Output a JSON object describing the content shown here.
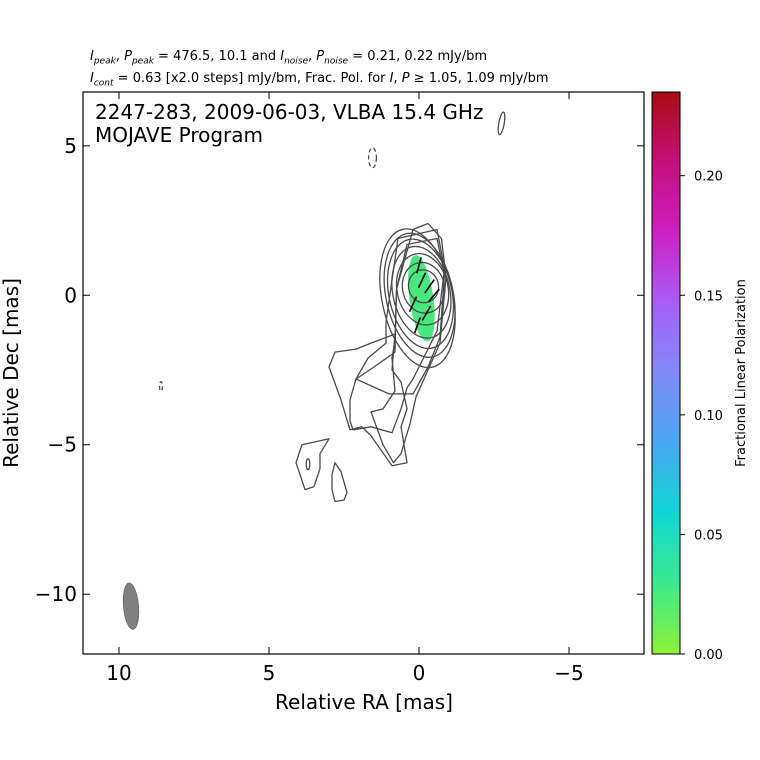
{
  "header": {
    "i_peak": "I",
    "i_peak_sub": "peak",
    "p_peak": "P",
    "p_peak_sub": "peak",
    "peak_values": " = 476.5, 10.1 and ",
    "i_noise": "I",
    "i_noise_sub": "noise",
    "p_noise": "P",
    "p_noise_sub": "noise",
    "noise_values": " = 0.21, 0.22 mJy/bm",
    "i_cont": "I",
    "i_cont_sub": "cont",
    "cont_values": " = 0.63 [x2.0 steps] mJy/bm, Frac. Pol. for ",
    "frac_i": "I",
    "frac_p": "P",
    "frac_ge": " ≥ ",
    "frac_values": " 1.05, 1.09 mJy/bm"
  },
  "chart_data": {
    "type": "contour",
    "title": "2247-283, 2009-06-03, VLBA 15.4 GHz",
    "subtitle": "MOJAVE Program",
    "xlabel": "Relative RA [mas]",
    "ylabel": "Relative Dec [mas]",
    "xlim": [
      11.2,
      -7.5
    ],
    "ylim": [
      -12.0,
      6.8
    ],
    "x_ticks": [
      10,
      5,
      0,
      -5
    ],
    "x_tick_labels": [
      "10",
      "5",
      "0",
      "−5"
    ],
    "y_ticks": [
      5,
      0,
      -5,
      -10
    ],
    "y_tick_labels": [
      "5",
      "0",
      "−5",
      "−10"
    ],
    "contour_base_mJy_per_beam": 0.63,
    "contour_step_factor": 2.0,
    "contours": [
      {
        "kind": "ellipse",
        "cx": -0.15,
        "cy": 0.3,
        "rx": 0.5,
        "ry": 0.55,
        "angle": -12
      },
      {
        "kind": "ellipse",
        "cx": -0.15,
        "cy": 0.25,
        "rx": 0.7,
        "ry": 0.85,
        "angle": -12
      },
      {
        "kind": "ellipse",
        "cx": -0.12,
        "cy": 0.2,
        "rx": 0.85,
        "ry": 1.2,
        "angle": -12
      },
      {
        "kind": "ellipse",
        "cx": -0.08,
        "cy": 0.1,
        "rx": 0.95,
        "ry": 1.55,
        "angle": -12
      },
      {
        "kind": "ellipse",
        "cx": -0.05,
        "cy": 0.05,
        "rx": 1.05,
        "ry": 1.85,
        "angle": -12
      },
      {
        "kind": "ellipse",
        "cx": -0.02,
        "cy": 0.0,
        "rx": 1.12,
        "ry": 2.1,
        "angle": -12
      },
      {
        "kind": "ellipse",
        "cx": 0.05,
        "cy": -0.1,
        "rx": 1.18,
        "ry": 2.35,
        "angle": -12
      },
      {
        "kind": "path",
        "points": [
          [
            0.2,
            2.2
          ],
          [
            -0.3,
            2.4
          ],
          [
            -0.75,
            1.9
          ],
          [
            -0.9,
            0.6
          ],
          [
            -0.7,
            -1.6
          ],
          [
            -0.3,
            -2.5
          ],
          [
            0.1,
            -3.4
          ],
          [
            0.3,
            -4.3
          ],
          [
            0.6,
            -5.3
          ],
          [
            0.85,
            -5.6
          ],
          [
            1.2,
            -5.0
          ],
          [
            1.6,
            -3.9
          ],
          [
            1.2,
            -3.8
          ],
          [
            0.8,
            -3.2
          ],
          [
            0.9,
            -2.1
          ],
          [
            0.8,
            -1.5
          ],
          [
            0.75,
            0.2
          ],
          [
            0.2,
            2.2
          ]
        ],
        "dashed": false
      },
      {
        "kind": "path",
        "points": [
          [
            0.4,
            1.7
          ],
          [
            -0.6,
            1.9
          ],
          [
            -0.85,
            0.7
          ],
          [
            -0.7,
            -1.4
          ],
          [
            -0.3,
            -2.4
          ],
          [
            0.2,
            -3.3
          ],
          [
            1.0,
            -3.3
          ],
          [
            2.1,
            -2.8
          ],
          [
            1.5,
            -2.4
          ],
          [
            0.8,
            -1.9
          ],
          [
            0.75,
            0.2
          ],
          [
            0.4,
            1.7
          ]
        ],
        "dashed": false
      },
      {
        "kind": "path",
        "points": [
          [
            0.7,
            1.9
          ],
          [
            -0.6,
            2.2
          ],
          [
            -0.85,
            0.9
          ],
          [
            -0.6,
            -1.2
          ],
          [
            -0.1,
            -2.2
          ],
          [
            0.2,
            -2.8
          ],
          [
            0.4,
            -3.1
          ],
          [
            0.6,
            -3.8
          ],
          [
            0.9,
            -4.6
          ],
          [
            1.6,
            -4.4
          ],
          [
            2.2,
            -4.5
          ],
          [
            2.3,
            -4.2
          ],
          [
            2.3,
            -3.5
          ],
          [
            2.1,
            -2.8
          ],
          [
            1.7,
            -2.1
          ],
          [
            1.1,
            -1.6
          ],
          [
            1.1,
            -0.9
          ],
          [
            0.7,
            1.9
          ]
        ],
        "dashed": false
      },
      {
        "kind": "path",
        "points": [
          [
            1.6,
            -1.6
          ],
          [
            0.8,
            -1.3
          ],
          [
            0.9,
            -2.5
          ],
          [
            0.6,
            -2.9
          ],
          [
            0.4,
            -3.8
          ],
          [
            0.6,
            -4.4
          ],
          [
            0.5,
            -5.0
          ],
          [
            0.4,
            -5.6
          ],
          [
            0.9,
            -5.7
          ],
          [
            1.6,
            -4.7
          ],
          [
            1.9,
            -4.4
          ],
          [
            2.3,
            -4.5
          ],
          [
            2.6,
            -3.5
          ],
          [
            3.0,
            -2.4
          ],
          [
            2.8,
            -1.9
          ],
          [
            2.1,
            -1.8
          ],
          [
            1.6,
            -1.6
          ]
        ],
        "dashed": false
      },
      {
        "kind": "path",
        "points": [
          [
            3.0,
            -4.8
          ],
          [
            3.9,
            -5.0
          ],
          [
            4.1,
            -5.6
          ],
          [
            3.8,
            -6.5
          ],
          [
            3.5,
            -6.4
          ],
          [
            3.3,
            -5.8
          ],
          [
            3.3,
            -5.3
          ],
          [
            3.0,
            -4.8
          ]
        ],
        "dashed": false
      },
      {
        "kind": "ellipse",
        "cx": 3.7,
        "cy": -5.65,
        "rx": 0.06,
        "ry": 0.18,
        "angle": 0,
        "dashed": false
      },
      {
        "kind": "path",
        "points": [
          [
            2.8,
            -5.6
          ],
          [
            2.6,
            -5.9
          ],
          [
            2.4,
            -6.6
          ],
          [
            2.5,
            -6.85
          ],
          [
            2.8,
            -6.9
          ],
          [
            2.9,
            -6.5
          ],
          [
            2.9,
            -6.0
          ],
          [
            2.8,
            -5.6
          ]
        ],
        "dashed": false
      },
      {
        "kind": "ellipse",
        "cx": 1.55,
        "cy": 4.6,
        "rx": 0.13,
        "ry": 0.33,
        "angle": 0,
        "dashed": true
      },
      {
        "kind": "ellipse",
        "cx": -2.75,
        "cy": 5.75,
        "rx": 0.09,
        "ry": 0.38,
        "angle": 10,
        "dashed": false
      },
      {
        "kind": "ellipse",
        "cx": 8.6,
        "cy": -3.05,
        "rx": 0.05,
        "ry": 0.16,
        "angle": 0,
        "dashed": true
      }
    ],
    "polarization_region": {
      "cx": -0.08,
      "cy": -0.1,
      "rx": 0.4,
      "ry": 1.45,
      "angle": -8,
      "frac_pol": 0.02
    },
    "evpa_ticks": [
      {
        "x": 0.0,
        "y": 1.0,
        "angle": 15
      },
      {
        "x": -0.1,
        "y": 0.5,
        "angle": 25
      },
      {
        "x": -0.35,
        "y": 0.3,
        "angle": 35
      },
      {
        "x": 0.2,
        "y": -0.3,
        "angle": 25
      },
      {
        "x": -0.25,
        "y": -0.6,
        "angle": 30
      },
      {
        "x": 0.05,
        "y": -1.0,
        "angle": 20
      },
      {
        "x": -0.5,
        "y": 0.0,
        "angle": 40
      }
    ],
    "beam": {
      "x": 9.6,
      "y": -10.4,
      "major_mas": 1.55,
      "minor_mas": 0.5,
      "pa_deg": -5
    },
    "colorbar": {
      "label": "Fractional Linear Polarization",
      "min": 0.0,
      "max": 0.235,
      "ticks": [
        0.0,
        0.05,
        0.1,
        0.15,
        0.2
      ],
      "tick_labels": [
        "0.00",
        "0.05",
        "0.10",
        "0.15",
        "0.20"
      ],
      "colors": [
        "#8ef23a",
        "#3de98d",
        "#0ed8d4",
        "#4aa7f2",
        "#7f8af8",
        "#a85ef5",
        "#cc20c4",
        "#c2107a",
        "#a80d12"
      ]
    },
    "colors": {
      "contour": "#4a4a4a",
      "beam": "#808080",
      "pol_fill": "#48e87e"
    }
  }
}
